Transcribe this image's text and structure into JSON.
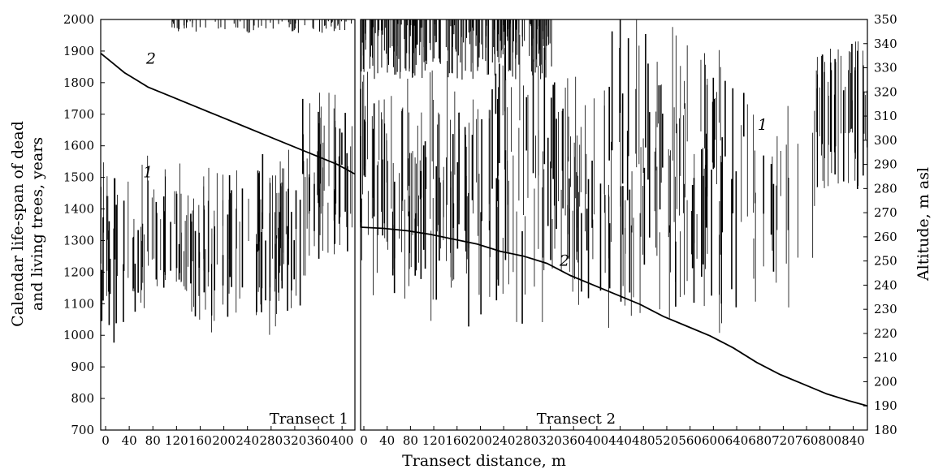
{
  "chart_data": {
    "type": "line",
    "y_left_label_line1": "Calendar life-span of dead",
    "y_left_label_line2": "and living trees, years",
    "y_right_label": "Altitude, m asl",
    "xlabel": "Transect distance, m",
    "y_left_range": [
      700,
      2000
    ],
    "y_left_ticks": [
      "700",
      "800",
      "900",
      "1000",
      "1100",
      "1200",
      "1300",
      "1400",
      "1500",
      "1600",
      "1700",
      "1800",
      "1900",
      "2000"
    ],
    "y_right_range": [
      180,
      350
    ],
    "y_right_ticks": [
      "180",
      "190",
      "200",
      "210",
      "220",
      "230",
      "240",
      "250",
      "260",
      "270",
      "280",
      "290",
      "300",
      "310",
      "320",
      "330",
      "340",
      "350"
    ],
    "grid": false,
    "panels": [
      {
        "label": "Transect 1",
        "x_range": [
          0,
          430
        ],
        "x_ticks": [
          "0",
          "40",
          "80",
          "120",
          "160",
          "200",
          "240",
          "280",
          "320",
          "360",
          "400"
        ],
        "curve_labels": [
          {
            "text": "1",
            "x": 80,
            "y": 1500
          },
          {
            "text": "2",
            "x": 85,
            "y": 1860
          }
        ],
        "altitude_curve": {
          "x": [
            0,
            20,
            40,
            60,
            80,
            120,
            160,
            200,
            240,
            280,
            320,
            360,
            400,
            430
          ],
          "altitude": [
            336,
            332,
            328,
            325,
            322,
            318,
            314,
            310,
            306,
            302,
            298,
            294,
            290,
            286
          ]
        }
      },
      {
        "label": "Transect 2",
        "x_range": [
          0,
          870
        ],
        "x_ticks": [
          "0",
          "40",
          "80",
          "120",
          "160",
          "200",
          "240",
          "280",
          "320",
          "360",
          "400",
          "440",
          "480",
          "520",
          "560",
          "600",
          "640",
          "680",
          "720",
          "760",
          "800",
          "840"
        ],
        "curve_labels": [
          {
            "text": "1",
            "x": 690,
            "y": 1650
          },
          {
            "text": "2",
            "x": 350,
            "y": 1220
          }
        ],
        "altitude_curve": {
          "x": [
            0,
            40,
            80,
            120,
            160,
            200,
            240,
            280,
            320,
            360,
            400,
            440,
            480,
            520,
            560,
            600,
            640,
            680,
            720,
            760,
            800,
            840,
            870
          ],
          "altitude": [
            264,
            263.5,
            262.5,
            261,
            259,
            257,
            254,
            252,
            249,
            244,
            240,
            236,
            232,
            227,
            223,
            219,
            214,
            208,
            203,
            199,
            195,
            192,
            190
          ]
        }
      }
    ],
    "lifespan_bars_description_note": ""
  },
  "colors": {
    "ink": "#000000",
    "background": "#ffffff"
  }
}
